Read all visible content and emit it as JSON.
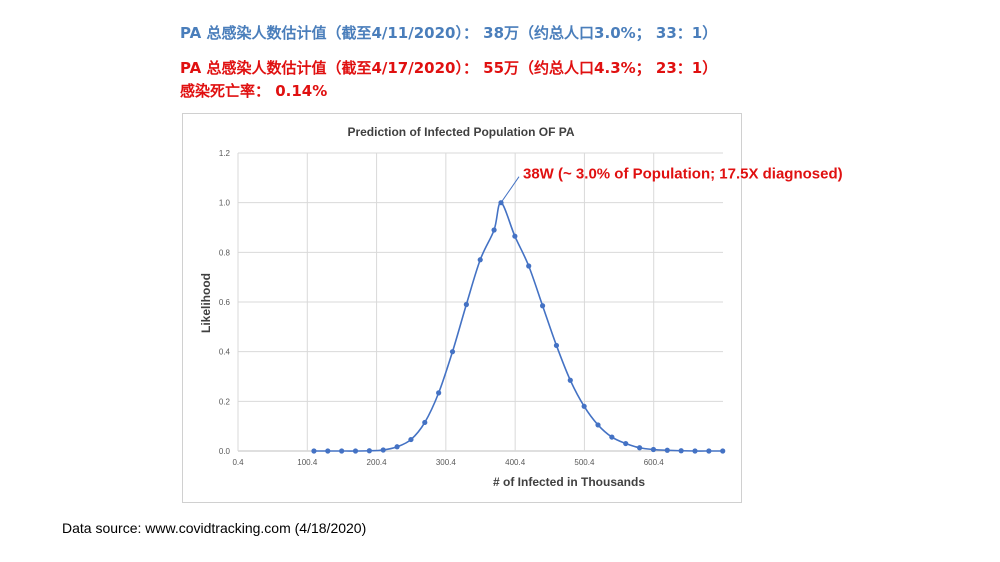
{
  "header": {
    "line1": "PA 总感染人数估计值（截至4/11/2020）： 38万（约总人口3.0%； 33：1）",
    "line2": "PA 总感染人数估计值（截至4/17/2020）： 55万（约总人口4.3%； 23：1）",
    "line3": "感染死亡率： 0.14%",
    "line1_color": "#4a7ebb",
    "line2_color": "#e01010"
  },
  "source": "Data source: www.covidtracking.com  (4/18/2020)",
  "chart_data": {
    "type": "line",
    "title": "Prediction of Infected Population OF PA",
    "xlabel": "# of Infected in Thousands",
    "ylabel": "Likelihood",
    "xlim": [
      0.4,
      700.4
    ],
    "ylim": [
      0,
      1.2
    ],
    "x_ticks": [
      "0.4",
      "100.4",
      "200.4",
      "300.4",
      "400.4",
      "500.4",
      "600.4"
    ],
    "x_tick_values": [
      0.4,
      100.4,
      200.4,
      300.4,
      400.4,
      500.4,
      600.4
    ],
    "y_ticks": [
      "0.0",
      "0.2",
      "0.4",
      "0.6",
      "0.8",
      "1.0",
      "1.2"
    ],
    "y_tick_values": [
      0,
      0.2,
      0.4,
      0.6,
      0.8,
      1.0,
      1.2
    ],
    "grid": "horizontal",
    "series_color": "#4472c4",
    "series": [
      {
        "x": [
          110,
          130,
          150,
          170,
          190,
          210,
          230,
          250,
          270,
          290,
          310,
          330,
          350,
          370,
          380,
          400,
          420,
          440,
          460,
          480,
          500,
          520,
          540,
          560,
          580,
          600,
          620,
          640,
          660,
          680,
          700
        ],
        "values": [
          0.0,
          0.0,
          0.0,
          0.0,
          0.001,
          0.004,
          0.017,
          0.046,
          0.115,
          0.234,
          0.4,
          0.59,
          0.77,
          0.89,
          1.0,
          0.865,
          0.745,
          0.585,
          0.425,
          0.285,
          0.18,
          0.105,
          0.056,
          0.03,
          0.013,
          0.006,
          0.003,
          0.001,
          0.0,
          0.0,
          0.0
        ]
      }
    ],
    "annotation": {
      "text": "38W (~ 3.0% of Population; 17.5X diagnosed)",
      "x": 380,
      "y": 1.0
    }
  }
}
